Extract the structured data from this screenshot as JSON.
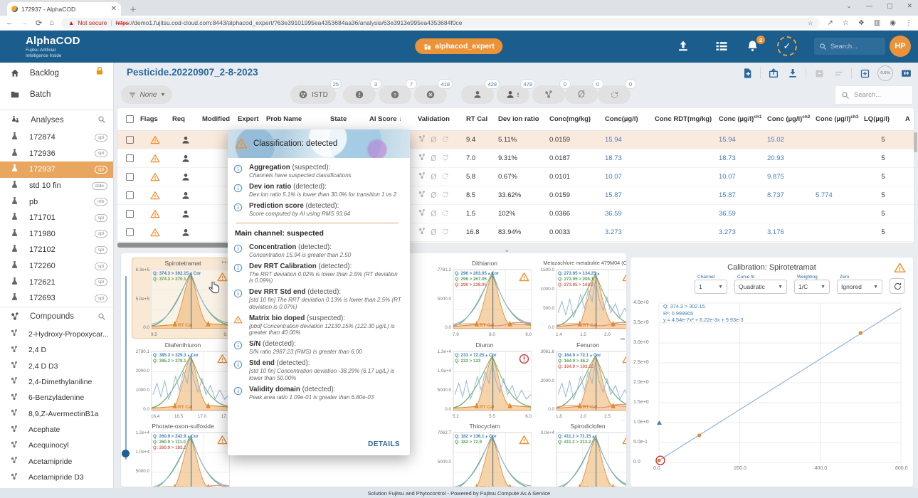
{
  "browser": {
    "tab_title": "172937 - AlphaCOD",
    "security_label": "Not secure",
    "url_https": "https",
    "url_rest": "://demo1.fujitsu.cod-cloud.com:8443/alphacod_expert/?63e39101995ea4353684aa36/analysis/63e3913e995ea4353684f0ce"
  },
  "header": {
    "app_name": "AlphaCOD",
    "app_subtitle1": "Fujitsu Artificial",
    "app_subtitle2": "Intelligence Inside",
    "workspace_badge": "alphacod_expert",
    "notification_count": "2",
    "search_placeholder": "Search...",
    "avatar_initials": "HP"
  },
  "sidebar": {
    "backlog_label": "Backlog",
    "batch_label": "Batch",
    "analyses_title": "Analyses",
    "analyses": [
      {
        "label": "172874",
        "badge": "spl",
        "selected": false
      },
      {
        "label": "172936",
        "badge": "spl",
        "selected": false
      },
      {
        "label": "172937",
        "badge": "spl",
        "selected": true
      },
      {
        "label": "std 10 fin",
        "badge": "stde",
        "selected": false
      },
      {
        "label": "pb",
        "badge": "mb",
        "selected": false
      },
      {
        "label": "171701",
        "badge": "spl",
        "selected": false
      },
      {
        "label": "171980",
        "badge": "spl",
        "selected": false
      },
      {
        "label": "172102",
        "badge": "spl",
        "selected": false
      },
      {
        "label": "172260",
        "badge": "spl",
        "selected": false
      },
      {
        "label": "172621",
        "badge": "spl",
        "selected": false
      },
      {
        "label": "172693",
        "badge": "spl",
        "selected": false
      }
    ],
    "compounds_title": "Compounds",
    "compounds": [
      "2-Hydroxy-Propoxycar...",
      "2,4 D",
      "2,4 D D3",
      "2,4-Dimethylaniline",
      "6-Benzyladenine",
      "8,9,Z-AvermectinB1a",
      "Acephate",
      "Acequinocyl",
      "Acetamipride",
      "Acetamipride D3",
      "Aldicarb"
    ]
  },
  "toolbar": {
    "page_title": "Pesticide.20220907_2-8-2023",
    "filter_label": "None",
    "zoom_badge": "0.6%",
    "chips": [
      {
        "icon": "istd",
        "label": "ISTD",
        "count": "25"
      },
      {
        "icon": "exclaim",
        "label": "",
        "count": "3"
      },
      {
        "icon": "question",
        "label": "",
        "count": "7"
      },
      {
        "icon": "cross",
        "label": "",
        "count": "418"
      },
      {
        "icon": "person",
        "label": "",
        "count": "428"
      },
      {
        "icon": "person-alert",
        "label": "",
        "count": "478"
      },
      {
        "icon": "fork",
        "label": "",
        "count": "0"
      },
      {
        "icon": "slash",
        "label": "",
        "count": "0"
      },
      {
        "icon": "refresh",
        "label": "",
        "count": "0"
      }
    ],
    "search_placeholder": "Search..."
  },
  "table": {
    "columns": [
      {
        "label": ""
      },
      {
        "label": "Flags"
      },
      {
        "label": "Req"
      },
      {
        "label": "Modified"
      },
      {
        "label": "Expert"
      },
      {
        "label": "Prob Name"
      },
      {
        "label": "State"
      },
      {
        "label": "AI Score",
        "sort": "↓"
      },
      {
        "label": "Validation"
      },
      {
        "label": "RT Cal"
      },
      {
        "label": "Dev ion ratio"
      },
      {
        "label": "Conc(mg/kg)"
      },
      {
        "label": "Conc(µg/l)"
      },
      {
        "label": "Conc RDT(mg/kg)"
      },
      {
        "label": "Conc (µg/l)",
        "sup": "ch1"
      },
      {
        "label": "Conc (µg/l)",
        "sup": "ch2"
      },
      {
        "label": "Conc (µg/l)",
        "sup": "ch3"
      },
      {
        "label": "LQ(µg/l)"
      },
      {
        "label": "A"
      }
    ],
    "rows": [
      {
        "rt_cal": "9.4",
        "dev_ion_ratio": "5.11%",
        "conc_mg": "0.0159",
        "conc_ug": "15.94",
        "conc_rdt": "",
        "ch1": "15.94",
        "ch2": "15.02",
        "ch3": "",
        "lq": "5",
        "highlighted": true
      },
      {
        "rt_cal": "7.0",
        "dev_ion_ratio": "9.31%",
        "conc_mg": "0.0187",
        "conc_ug": "18.73",
        "conc_rdt": "",
        "ch1": "18.73",
        "ch2": "20.93",
        "ch3": "",
        "lq": "5",
        "highlighted": false
      },
      {
        "rt_cal": "5.8",
        "dev_ion_ratio": "0.67%",
        "conc_mg": "0.0101",
        "conc_ug": "10.07",
        "conc_rdt": "",
        "ch1": "10.07",
        "ch2": "9.875",
        "ch3": "",
        "lq": "5",
        "highlighted": false
      },
      {
        "rt_cal": "8.5",
        "dev_ion_ratio": "33.62%",
        "conc_mg": "0.0159",
        "conc_ug": "15.87",
        "conc_rdt": "",
        "ch1": "15.87",
        "ch2": "8.737",
        "ch3": "5.774",
        "lq": "5",
        "highlighted": false
      },
      {
        "rt_cal": "1.5",
        "dev_ion_ratio": "102%",
        "conc_mg": "0.0366",
        "conc_ug": "36.59",
        "conc_rdt": "",
        "ch1": "36.59",
        "ch2": "",
        "ch3": "",
        "lq": "5",
        "highlighted": false
      },
      {
        "rt_cal": "16.8",
        "dev_ion_ratio": "83.94%",
        "conc_mg": "0.0033",
        "conc_ug": "3.273",
        "conc_rdt": "",
        "ch1": "3.273",
        "ch2": "3.176",
        "ch3": "",
        "lq": "5",
        "highlighted": false
      }
    ]
  },
  "popup": {
    "title": "Classification: detected",
    "top_items": [
      {
        "icon": "info",
        "name": "Aggregation",
        "status": "(suspected):",
        "desc": "Channels have suspected classifications"
      },
      {
        "icon": "info",
        "name": "Dev ion ratio",
        "status": "(detected):",
        "desc": "Dev ion ratio 5.1% is lower than 30.0% for transition 1 vs 2"
      },
      {
        "icon": "info",
        "name": "Prediction score",
        "status": "(detected):",
        "desc": "Score computed by AI using RMS 93.64"
      }
    ],
    "subtitle": "Main channel: suspected",
    "main_items": [
      {
        "icon": "info",
        "name": "Concentration",
        "status": "(detected):",
        "desc": "Concentration 15.94 is greater than 2.50"
      },
      {
        "icon": "info",
        "name": "Dev RRT Calibration",
        "status": "(detected):",
        "desc": "The RRT deviation 0.02% is lower than 2.5% (RT deviation is 0.09%)"
      },
      {
        "icon": "info",
        "name": "Dev RRT Std end",
        "status": "(detected):",
        "desc": "[std 10 fin] The RRT deviation 0.13% is lower than 2.5% (RT deviation is 0.07%)"
      },
      {
        "icon": "warn",
        "name": "Matrix bio doped",
        "status": "(suspected):",
        "desc": "[pbd] Concentration deviation 12130.15% (122.30 µg/L) is greater than 40.00%"
      },
      {
        "icon": "info",
        "name": "S/N",
        "status": "(detected):",
        "desc": "S/N ratio 2987.23 (RMS) is greater than 6.00"
      },
      {
        "icon": "info",
        "name": "Std end",
        "status": "(detected):",
        "desc": "[std 10 fin] Concentration deviation -38.29% (6.17 µg/L) is lower than 50.00%"
      },
      {
        "icon": "info",
        "name": "Validity domain",
        "status": "(detected):",
        "desc": "Peak area ratio 1.09e-01 is greater than 6.80e-03"
      }
    ],
    "details_label": "DETAILS"
  },
  "charts": [
    {
      "title": "Spirotetramat",
      "selected": true,
      "menu": "•••",
      "flag": "warn",
      "rt_label": "RT Cal",
      "noisy": false,
      "y_ticks": [
        "6.3e+5",
        "5.0e+5",
        "0.0"
      ],
      "x_ticks": [
        "9.5",
        "9.8"
      ],
      "legend": [
        {
          "text": "Q: 374.3 > 302.15 ▴ Cor",
          "color": "blue"
        },
        {
          "text": "Q: 374.3 > 270.1",
          "color": "green"
        }
      ]
    },
    {
      "title": "Dithianon",
      "selected": false,
      "flag": "warn",
      "rt_label": "RT Cal",
      "noisy": false,
      "y_ticks": [
        "7781.2",
        "5000.0",
        "0.0"
      ],
      "x_ticks": [
        "7.9",
        "8.0",
        "9.0"
      ],
      "legend": [
        {
          "text": "Q: 296 > 263.05 ▴ Cor",
          "color": "blue"
        },
        {
          "text": "Q: 296 > 267.05",
          "color": "green"
        },
        {
          "text": "Q: 296 > 238.05",
          "color": "red"
        }
      ]
    },
    {
      "title": "Metazachlore metabolite 479M04 (OA)",
      "selected": false,
      "flag": "warn",
      "rt_label": "RT Cal",
      "noisy": true,
      "y_ticks": [
        "1500.0",
        "1000.0",
        "500.0",
        "0.0"
      ],
      "x_ticks": [
        "1.4",
        "1.5",
        "2.0",
        "2.2"
      ],
      "legend": [
        {
          "text": "Q: 273.95 > 134.25 ▴",
          "color": "blue"
        },
        {
          "text": "Q: 273.95 > 206.1",
          "color": "green"
        },
        {
          "text": "Q: 273.95 > 162.2",
          "color": "red"
        }
      ]
    },
    {
      "title": "Diafenthiuron",
      "selected": false,
      "flag": "warn",
      "rt_label": "RT Cal",
      "noisy": true,
      "y_ticks": [
        "2780.1",
        "2000.0",
        "1000.0",
        "0.0"
      ],
      "x_ticks": [
        "16.4",
        "16.5",
        "17.0",
        "17.2"
      ],
      "legend": [
        {
          "text": "Q: 385.3 > 329.3 ▴ Cor",
          "color": "blue"
        },
        {
          "text": "Q: 385.3 > 278.1",
          "color": "green"
        }
      ]
    },
    {
      "title": "Diuron",
      "selected": false,
      "flag": "error",
      "rt_label": "RT Cal",
      "noisy": true,
      "y_ticks": [
        "1.3e+4",
        "1.0e+4",
        "5000.0",
        "0.0"
      ],
      "x_ticks": [
        "5.2",
        "5.5",
        "6.0"
      ],
      "legend": [
        {
          "text": "Q: 233 > 72.25 ▴ Cor",
          "color": "blue"
        },
        {
          "text": "Q: 233 > 133",
          "color": "green"
        }
      ]
    },
    {
      "title": "Fenuron",
      "selected": false,
      "flag": "warn",
      "rt_label": "RT Cal",
      "noisy": true,
      "y_ticks": [
        "3061.6",
        "2000.0",
        "0.0"
      ],
      "x_ticks": [
        "1.8",
        "2.0",
        "2.5",
        "2.6"
      ],
      "legend": [
        {
          "text": "Q: 164.9 > 72.1 ▴ Cor",
          "color": "blue"
        },
        {
          "text": "Q: 164.9 > 46.2",
          "color": "green"
        },
        {
          "text": "Q: 164.9 > 103.15",
          "color": "red"
        }
      ]
    },
    {
      "title": "Phorate-oxon-sulfoxide",
      "selected": false,
      "flag": "warn",
      "rt_label": "RT Cal",
      "noisy": false,
      "y_ticks": [
        "1.2e+4",
        "1.0e+4",
        "5000.0",
        "0.0"
      ],
      "x_ticks": [],
      "legend": [
        {
          "text": "Q: 260.9 > 242.9 ▴ Cor",
          "color": "blue"
        },
        {
          "text": "Q: 260.9 > 111.0",
          "color": "green"
        },
        {
          "text": "Q: 260.9 > 183.2",
          "color": "red"
        }
      ]
    },
    {
      "title": "Thiocyclam",
      "selected": false,
      "flag": "warn",
      "rt_label": "RT Cal",
      "noisy": false,
      "y_ticks": [
        "7062.7",
        "5000.0",
        "0.0"
      ],
      "x_ticks": [],
      "legend": [
        {
          "text": "Q: 182 > 136.1 ▴ Cor",
          "color": "blue"
        },
        {
          "text": "Q: 182 > 72.9",
          "color": "green"
        }
      ]
    },
    {
      "title": "Spirodiclofen",
      "selected": false,
      "flag": "warn",
      "rt_label": "RT Cal",
      "noisy": false,
      "y_ticks": [
        "3.0e+4",
        "2.0e+4"
      ],
      "x_ticks": [],
      "legend": [
        {
          "text": "Q: 411.2 > 71.15 ▴",
          "color": "blue"
        },
        {
          "text": "Q: 411.2 > 313.2",
          "color": "green"
        }
      ]
    }
  ],
  "calibration": {
    "title": "Calibration: Spirotetramat",
    "controls": [
      {
        "label": "Channel",
        "value": "1"
      },
      {
        "label": "Curve fit",
        "value": "Quadratic"
      },
      {
        "label": "Weighting",
        "value": "1/C"
      },
      {
        "label": "Zero",
        "value": "Ignored"
      }
    ],
    "annotation": [
      "Q: 374.3 > 302.15",
      "R²: 0.999905",
      "y = 4.54e-7x² + 6.22e-3x + 9.93e-3"
    ],
    "y_ticks": [
      "4.0e+0",
      "3.5e+0",
      "3.0e+0",
      "2.5e+0",
      "2.0e+0",
      "1.5e+0",
      "1.0e+0",
      "5.0e-1",
      "0.0"
    ],
    "x_ticks": [
      "0.0",
      "200.0",
      "400.0",
      "600.0"
    ],
    "chart_data": {
      "type": "scatter",
      "x": [
        0,
        100,
        500
      ],
      "y": [
        0.05,
        0.68,
        3.25
      ],
      "fit_line": {
        "x": [
          0,
          600
        ],
        "y": [
          0.05,
          3.87
        ]
      },
      "xlim": [
        0,
        600
      ],
      "ylim": [
        0,
        4.0
      ]
    }
  },
  "footer": {
    "text": "Solution Fujitsu and Phytocontrol - Powered by Fujitsu Compute As A Service"
  },
  "colors": {
    "accent_orange": "#ec9338",
    "header_blue": "#1b5d8c",
    "link_blue": "#4a7db3",
    "warn_orange": "#ee8f2e",
    "error_red": "#cc3333"
  }
}
